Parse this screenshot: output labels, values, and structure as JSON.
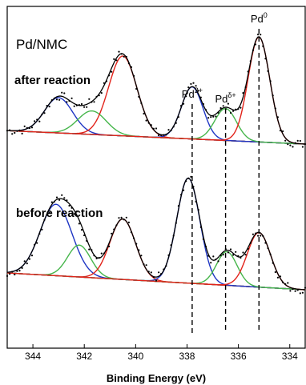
{
  "chart_data": {
    "type": "line",
    "title": "",
    "sample_label": "Pd/NMC",
    "xlabel": "Binding Energy (eV)",
    "ylabel": "",
    "x_reversed": true,
    "xlim": [
      345.0,
      333.4
    ],
    "xticks": [
      344,
      342,
      340,
      338,
      336,
      334
    ],
    "yticks": [],
    "grid": false,
    "peak_markers": [
      {
        "base": "Pd",
        "sup": "2+",
        "x": 337.8
      },
      {
        "base": "Pd",
        "sup": "δ+",
        "x": 336.5
      },
      {
        "base": "Pd",
        "sup": "0",
        "x": 335.2
      }
    ],
    "panels": [
      {
        "label": "after reaction",
        "offset": 1.7,
        "baseline": {
          "start": 0.16,
          "end": 0.0,
          "color": "#1f36c4"
        },
        "peaks": [
          {
            "center": 343.0,
            "height": 0.42,
            "width": 0.55,
            "color": "#1f36c4"
          },
          {
            "center": 341.7,
            "height": 0.28,
            "width": 0.55,
            "color": "#46b64b"
          },
          {
            "center": 340.5,
            "height": 0.95,
            "width": 0.55,
            "color": "#e2231a"
          },
          {
            "center": 337.8,
            "height": 0.62,
            "width": 0.42,
            "color": "#1f36c4"
          },
          {
            "center": 336.5,
            "height": 0.38,
            "width": 0.42,
            "color": "#46b64b"
          },
          {
            "center": 335.2,
            "height": 1.25,
            "width": 0.42,
            "color": "#e2231a"
          }
        ],
        "envelope_color": "#000000"
      },
      {
        "label": "before reaction",
        "offset": 0.0,
        "baseline": {
          "start": 0.2,
          "end": 0.0,
          "color": "#46b64b"
        },
        "peaks": [
          {
            "center": 343.1,
            "height": 0.85,
            "width": 0.62,
            "color": "#1f36c4"
          },
          {
            "center": 342.2,
            "height": 0.38,
            "width": 0.45,
            "color": "#46b64b"
          },
          {
            "center": 340.5,
            "height": 0.72,
            "width": 0.5,
            "color": "#e2231a"
          },
          {
            "center": 337.95,
            "height": 1.25,
            "width": 0.45,
            "color": "#1f36c4"
          },
          {
            "center": 336.45,
            "height": 0.4,
            "width": 0.4,
            "color": "#46b64b"
          },
          {
            "center": 335.2,
            "height": 0.65,
            "width": 0.45,
            "color": "#e2231a"
          }
        ],
        "envelope_color": "#000000"
      }
    ],
    "data_points": {
      "marker": "dot",
      "color": "#000000"
    }
  }
}
